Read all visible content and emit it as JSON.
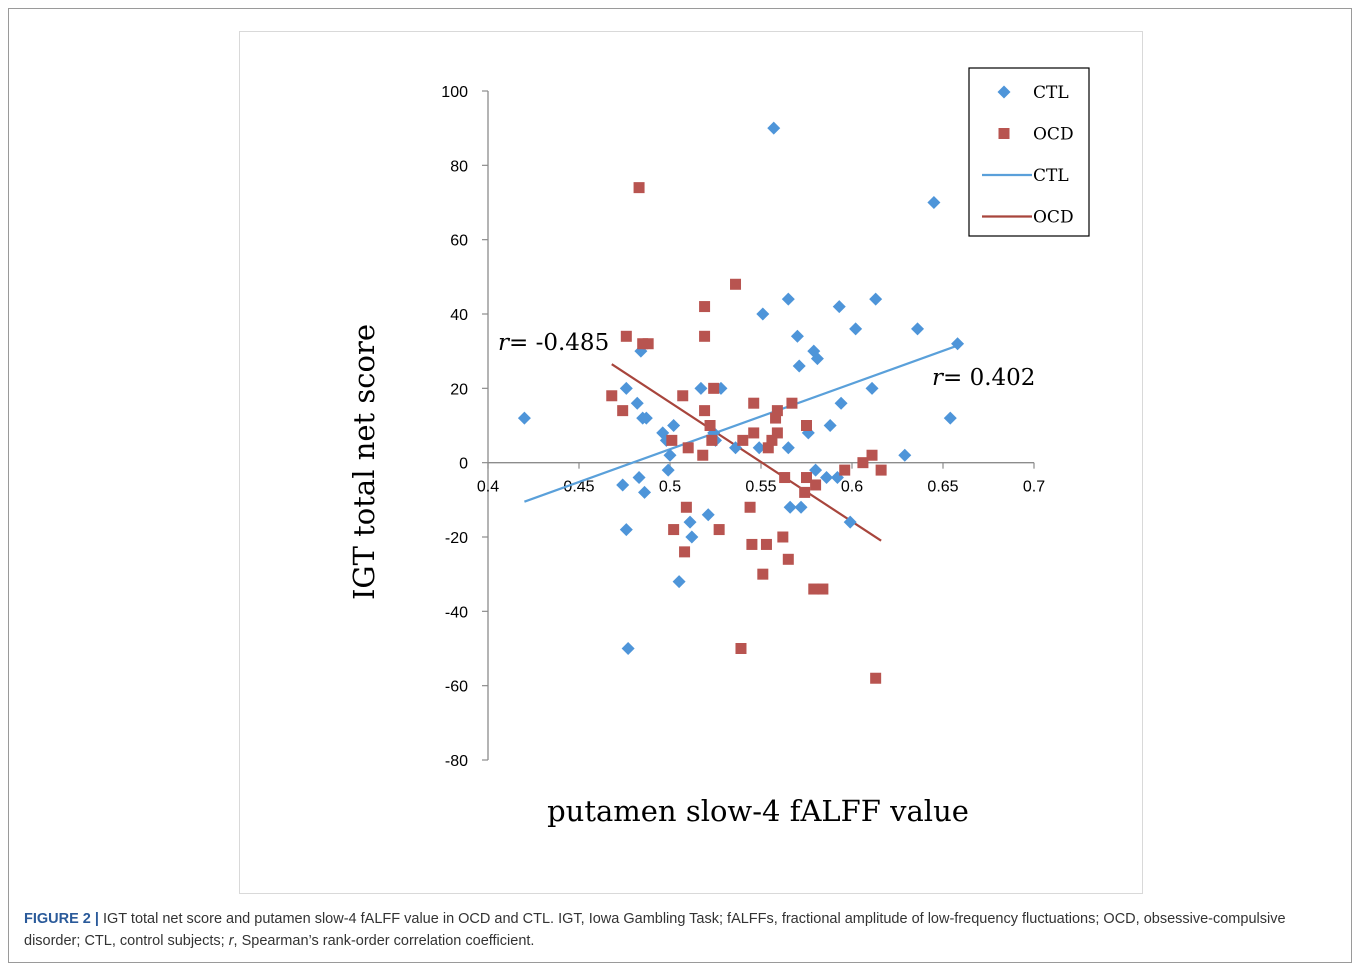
{
  "caption": {
    "figure_label": "FIGURE 2 |",
    "text_part1": " IGT total net score and putamen slow-4 fALFF value in OCD and CTL. IGT, Iowa Gambling Task; fALFFs, fractional amplitude of low-frequency fluctuations; OCD, obsessive-compulsive disorder; CTL, control subjects; ",
    "r_symbol": "r",
    "text_part2": ", Spearman’s rank-order correlation coefficient."
  },
  "colors": {
    "ctl": "#4e95d9",
    "ocd": "#b85450",
    "ctl_line": "#5aa0da",
    "ocd_line": "#a8453c",
    "axis": "#8c8c8c"
  },
  "chart_data": {
    "type": "scatter",
    "title": "",
    "xlabel": "putamen slow-4 fALFF value",
    "ylabel": "IGT total net score",
    "xlim": [
      0.4,
      0.7
    ],
    "ylim": [
      -80,
      100
    ],
    "x_ticks": [
      0.4,
      0.45,
      0.5,
      0.55,
      0.6,
      0.65,
      0.7
    ],
    "x_tick_labels": [
      "0.4",
      "0.45",
      "0.5",
      "0.55",
      "0.6",
      "0.65",
      "0.7"
    ],
    "y_ticks": [
      100,
      80,
      60,
      40,
      20,
      0,
      -20,
      -40,
      -60,
      -80
    ],
    "y_tick_labels": [
      "100",
      "80",
      "60",
      "40",
      "20",
      "0",
      "-20",
      "-40",
      "-60",
      "-80"
    ],
    "grid": false,
    "legend": {
      "position": "top-right",
      "entries": [
        {
          "label": "CTL",
          "kind": "marker",
          "series": "CTL"
        },
        {
          "label": "OCD",
          "kind": "marker",
          "series": "OCD"
        },
        {
          "label": "CTL",
          "kind": "line",
          "series": "CTL"
        },
        {
          "label": "OCD",
          "kind": "line",
          "series": "OCD"
        }
      ]
    },
    "series": [
      {
        "name": "CTL",
        "marker": "diamond",
        "points": [
          [
            0.42,
            12
          ],
          [
            0.474,
            -6
          ],
          [
            0.476,
            20
          ],
          [
            0.476,
            -18
          ],
          [
            0.477,
            -50
          ],
          [
            0.482,
            16
          ],
          [
            0.483,
            -4
          ],
          [
            0.484,
            30
          ],
          [
            0.485,
            12
          ],
          [
            0.486,
            -8
          ],
          [
            0.487,
            12
          ],
          [
            0.496,
            8
          ],
          [
            0.498,
            6
          ],
          [
            0.499,
            -2
          ],
          [
            0.5,
            2
          ],
          [
            0.502,
            10
          ],
          [
            0.505,
            -32
          ],
          [
            0.511,
            -16
          ],
          [
            0.512,
            -20
          ],
          [
            0.517,
            20
          ],
          [
            0.521,
            -14
          ],
          [
            0.524,
            8
          ],
          [
            0.525,
            6
          ],
          [
            0.528,
            20
          ],
          [
            0.536,
            4
          ],
          [
            0.549,
            4
          ],
          [
            0.551,
            40
          ],
          [
            0.557,
            90
          ],
          [
            0.565,
            44
          ],
          [
            0.565,
            4
          ],
          [
            0.566,
            -12
          ],
          [
            0.57,
            34
          ],
          [
            0.571,
            26
          ],
          [
            0.572,
            -12
          ],
          [
            0.576,
            8
          ],
          [
            0.579,
            30
          ],
          [
            0.58,
            -2
          ],
          [
            0.581,
            28
          ],
          [
            0.586,
            -4
          ],
          [
            0.588,
            10
          ],
          [
            0.592,
            -4
          ],
          [
            0.593,
            42
          ],
          [
            0.594,
            16
          ],
          [
            0.599,
            -16
          ],
          [
            0.602,
            36
          ],
          [
            0.611,
            20
          ],
          [
            0.613,
            44
          ],
          [
            0.629,
            2
          ],
          [
            0.636,
            36
          ],
          [
            0.645,
            70
          ],
          [
            0.654,
            12
          ],
          [
            0.658,
            32
          ]
        ]
      },
      {
        "name": "OCD",
        "marker": "square",
        "points": [
          [
            0.468,
            18
          ],
          [
            0.474,
            14
          ],
          [
            0.476,
            34
          ],
          [
            0.483,
            74
          ],
          [
            0.485,
            32
          ],
          [
            0.488,
            32
          ],
          [
            0.501,
            6
          ],
          [
            0.502,
            -18
          ],
          [
            0.507,
            18
          ],
          [
            0.508,
            -24
          ],
          [
            0.509,
            -12
          ],
          [
            0.51,
            4
          ],
          [
            0.518,
            2
          ],
          [
            0.519,
            14
          ],
          [
            0.519,
            42
          ],
          [
            0.519,
            34
          ],
          [
            0.522,
            10
          ],
          [
            0.523,
            6
          ],
          [
            0.524,
            20
          ],
          [
            0.527,
            -18
          ],
          [
            0.536,
            48
          ],
          [
            0.539,
            -50
          ],
          [
            0.54,
            6
          ],
          [
            0.544,
            -12
          ],
          [
            0.545,
            -22
          ],
          [
            0.546,
            16
          ],
          [
            0.546,
            8
          ],
          [
            0.551,
            -30
          ],
          [
            0.553,
            -22
          ],
          [
            0.554,
            4
          ],
          [
            0.556,
            6
          ],
          [
            0.558,
            12
          ],
          [
            0.559,
            14
          ],
          [
            0.559,
            8
          ],
          [
            0.562,
            -20
          ],
          [
            0.563,
            -4
          ],
          [
            0.565,
            -26
          ],
          [
            0.567,
            16
          ],
          [
            0.574,
            -8
          ],
          [
            0.575,
            10
          ],
          [
            0.575,
            -4
          ],
          [
            0.579,
            -34
          ],
          [
            0.58,
            -6
          ],
          [
            0.584,
            -34
          ],
          [
            0.596,
            -2
          ],
          [
            0.606,
            0
          ],
          [
            0.611,
            2
          ],
          [
            0.613,
            -58
          ],
          [
            0.616,
            -2
          ]
        ]
      }
    ],
    "trendlines": [
      {
        "name": "CTL",
        "x": [
          0.42,
          0.658
        ],
        "y": [
          -10.5,
          31.5
        ]
      },
      {
        "name": "OCD",
        "x": [
          0.468,
          0.616
        ],
        "y": [
          26.5,
          -21.0
        ]
      }
    ],
    "annotations": [
      {
        "id": "ocd-r",
        "r_symbol": "r",
        "text": "= -0.485"
      },
      {
        "id": "ctl-r",
        "r_symbol": "r",
        "text": "= 0.402"
      }
    ]
  }
}
